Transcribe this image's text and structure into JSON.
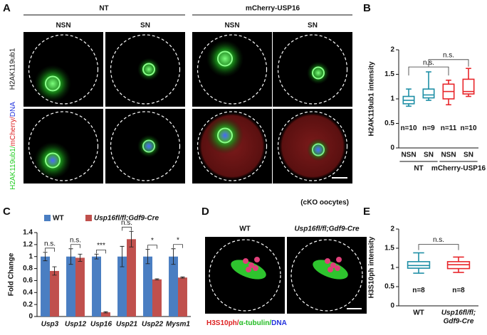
{
  "panel_a": {
    "letter": "A",
    "groups": [
      "NT",
      "mCherry-USP16"
    ],
    "columns": [
      "NSN",
      "SN",
      "NSN",
      "SN"
    ],
    "row1_label": "H2AK119ub1",
    "row2_label": [
      {
        "text": "H2AK119ub1/",
        "color": "#22cc22"
      },
      {
        "text": "mCherry/",
        "color": "#dd2222"
      },
      {
        "text": "DNA",
        "color": "#2233dd"
      }
    ],
    "note": "(cKO oocytes)"
  },
  "panel_d": {
    "letter": "D",
    "columns": [
      "WT",
      "Usp16fl/fl;Gdf9-Cre"
    ],
    "caption": [
      {
        "text": "H3S10ph/",
        "color": "#dd2222"
      },
      {
        "text": "α-tubulin/",
        "color": "#22bb22"
      },
      {
        "text": "DNA",
        "color": "#2233dd"
      }
    ]
  },
  "chart_data": [
    {
      "type": "box",
      "letter": "B",
      "ylabel": "H2AK119ub1 intensity",
      "categories": [
        "NSN",
        "SN",
        "NSN",
        "SN"
      ],
      "groups": [
        "NT",
        "mCherry-USP16"
      ],
      "colors": [
        "#1f8fa6",
        "#1f8fa6",
        "#e8262b",
        "#e8262b"
      ],
      "boxes": [
        {
          "min": 0.85,
          "q1": 0.9,
          "median": 0.97,
          "q3": 1.05,
          "max": 1.2
        },
        {
          "min": 0.97,
          "q1": 1.02,
          "median": 1.08,
          "q3": 1.2,
          "max": 1.55
        },
        {
          "min": 0.88,
          "q1": 1.0,
          "median": 1.15,
          "q3": 1.3,
          "max": 1.38
        },
        {
          "min": 1.05,
          "q1": 1.1,
          "median": 1.15,
          "q3": 1.4,
          "max": 1.62
        }
      ],
      "n_labels": [
        "n=10",
        "n=9",
        "n=11",
        "n=10"
      ],
      "annotations": [
        "n.s.",
        "n.s."
      ],
      "ylim": [
        0,
        2
      ],
      "yticks": [
        0,
        0.5,
        1,
        1.5,
        2
      ]
    },
    {
      "type": "bar",
      "letter": "C",
      "ylabel": "Fold Change",
      "categories": [
        "Usp3",
        "Usp12",
        "Usp16",
        "Usp21",
        "Usp22",
        "Mysm1"
      ],
      "series": [
        {
          "name": "WT",
          "color": "#4a7ec2",
          "values": [
            1,
            1,
            1,
            1,
            1,
            1
          ],
          "errors": [
            0.07,
            0.13,
            0.04,
            0.17,
            0.12,
            0.13
          ]
        },
        {
          "name": "Usp16fl/fl;Gdf9-Cre",
          "color": "#c0504d",
          "values": [
            0.76,
            0.98,
            0.07,
            1.29,
            0.62,
            0.65
          ],
          "errors": [
            0.07,
            0.06,
            0.01,
            0.13,
            0.01,
            0.01
          ]
        }
      ],
      "annotations": [
        "n.s.",
        "n.s.",
        "***",
        "n.s.",
        "*",
        "*"
      ],
      "ylim": [
        0,
        1.4
      ],
      "yticks": [
        0,
        0.2,
        0.4,
        0.6,
        0.8,
        1,
        1.2,
        1.4
      ]
    },
    {
      "type": "box",
      "letter": "E",
      "ylabel": "H3S10ph intensity",
      "categories": [
        "WT",
        [
          "Usp16fl/fl;",
          "Gdf9-Cre"
        ]
      ],
      "colors": [
        "#1f8fa6",
        "#e8262b"
      ],
      "boxes": [
        {
          "min": 0.85,
          "q1": 0.98,
          "median": 1.05,
          "q3": 1.15,
          "max": 1.38
        },
        {
          "min": 0.87,
          "q1": 0.97,
          "median": 1.07,
          "q3": 1.15,
          "max": 1.27
        }
      ],
      "n_labels": [
        "n=8",
        "n=8"
      ],
      "annotations": [
        "n.s."
      ],
      "ylim": [
        0,
        2
      ],
      "yticks": [
        0,
        0.5,
        1,
        1.5,
        2
      ]
    }
  ]
}
